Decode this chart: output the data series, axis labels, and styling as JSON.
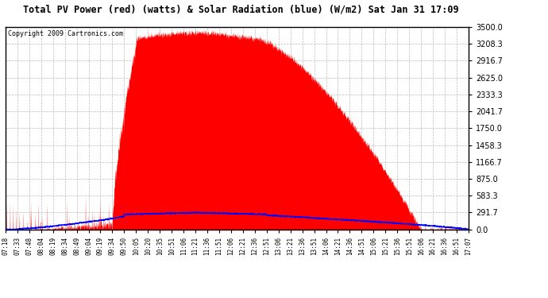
{
  "title": "Total PV Power (red) (watts) & Solar Radiation (blue) (W/m2) Sat Jan 31 17:09",
  "copyright": "Copyright 2009 Cartronics.com",
  "ymin": 0.0,
  "ymax": 3500.0,
  "yticks": [
    0.0,
    291.7,
    583.3,
    875.0,
    1166.7,
    1458.3,
    1750.0,
    2041.7,
    2333.3,
    2625.0,
    2916.7,
    3208.3,
    3500.0
  ],
  "xtick_labels": [
    "07:18",
    "07:33",
    "07:48",
    "08:04",
    "08:19",
    "08:34",
    "08:49",
    "09:04",
    "09:19",
    "09:34",
    "09:50",
    "10:05",
    "10:20",
    "10:35",
    "10:51",
    "11:06",
    "11:21",
    "11:36",
    "11:51",
    "12:06",
    "12:21",
    "12:36",
    "12:51",
    "13:06",
    "13:21",
    "13:36",
    "13:51",
    "14:06",
    "14:21",
    "14:36",
    "14:51",
    "15:06",
    "15:21",
    "15:36",
    "15:51",
    "16:06",
    "16:21",
    "16:36",
    "16:51",
    "17:07"
  ],
  "background_color": "#ffffff",
  "plot_bg_color": "#ffffff",
  "red_color": "#ff0000",
  "blue_color": "#0000ff",
  "grid_color": "#aaaaaa"
}
